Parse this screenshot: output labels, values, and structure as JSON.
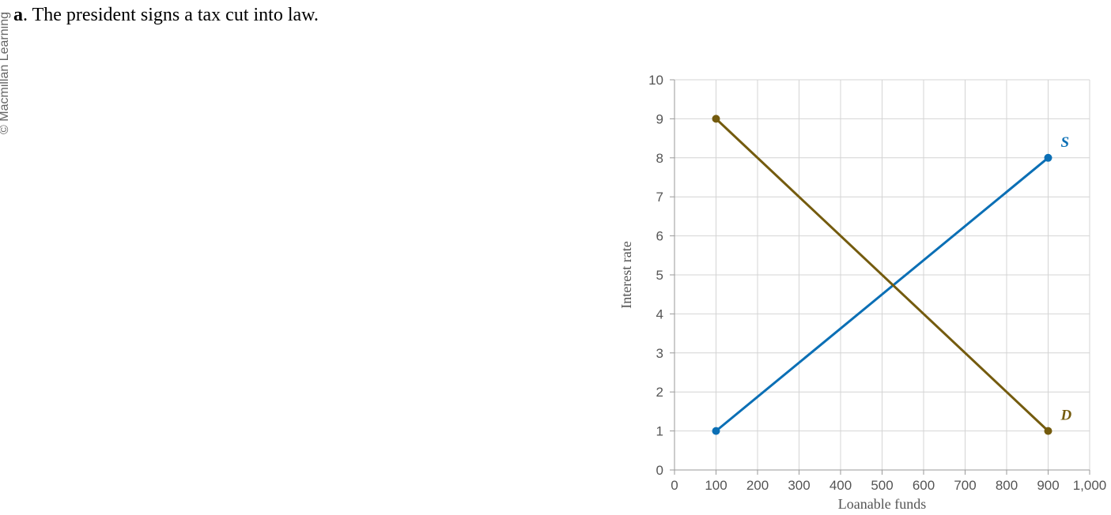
{
  "watermark": "© Macmillan Learning",
  "question": {
    "letter": "a",
    "text": ". The president signs a tax cut into law."
  },
  "chart_data": {
    "type": "line",
    "title": "",
    "xlabel": "Loanable funds",
    "ylabel": "Interest rate",
    "xlim": [
      0,
      1000
    ],
    "ylim": [
      0,
      10
    ],
    "x_ticks": [
      0,
      100,
      200,
      300,
      400,
      500,
      600,
      700,
      800,
      900,
      1000
    ],
    "x_tick_labels": [
      "0",
      "100",
      "200",
      "300",
      "400",
      "500",
      "600",
      "700",
      "800",
      "900",
      "1,000"
    ],
    "y_ticks": [
      0,
      1,
      2,
      3,
      4,
      5,
      6,
      7,
      8,
      9,
      10
    ],
    "y_tick_labels": [
      "0",
      "1",
      "2",
      "3",
      "4",
      "5",
      "6",
      "7",
      "8",
      "9",
      "10"
    ],
    "grid": true,
    "series": [
      {
        "name": "S",
        "color": "#0b6fb5",
        "points": [
          [
            100,
            1
          ],
          [
            900,
            8
          ]
        ]
      },
      {
        "name": "D",
        "color": "#745b0e",
        "points": [
          [
            100,
            9
          ],
          [
            900,
            1
          ]
        ]
      }
    ]
  }
}
